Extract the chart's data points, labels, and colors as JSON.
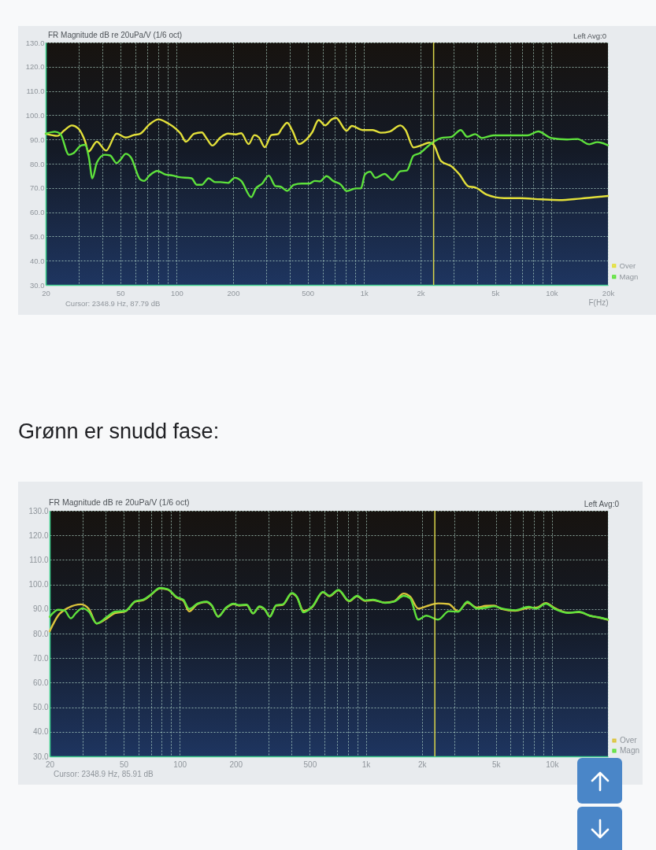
{
  "chart_data": [
    {
      "type": "line",
      "subtitle": "FR Magnitude dB re 20uPa/V (1/6 oct)",
      "xlabel": "F(Hz)",
      "annotations": [
        "Left Avg:0",
        "Cursor: 2348.9 Hz, 87.79 dB"
      ],
      "log": "x",
      "xlim": [
        20,
        20000
      ],
      "xticks": [
        20,
        {
          "value": 30,
          "label": null
        },
        {
          "value": 40,
          "label": null
        },
        50,
        {
          "value": 60,
          "label": null
        },
        {
          "value": 70,
          "label": null
        },
        {
          "value": 80,
          "label": null
        },
        {
          "value": 90,
          "label": null
        },
        100,
        200,
        {
          "value": 300,
          "label": null
        },
        {
          "value": 400,
          "label": null
        },
        500,
        {
          "value": 600,
          "label": null
        },
        {
          "value": 700,
          "label": null
        },
        {
          "value": 800,
          "label": null
        },
        {
          "value": 900,
          "label": null
        },
        {
          "value": 1000,
          "label": "1k"
        },
        {
          "value": 2000,
          "label": "2k"
        },
        {
          "value": 3000,
          "label": null
        },
        {
          "value": 4000,
          "label": null
        },
        {
          "value": 5000,
          "label": "5k"
        },
        {
          "value": 6000,
          "label": null
        },
        {
          "value": 7000,
          "label": null
        },
        {
          "value": 8000,
          "label": null
        },
        {
          "value": 9000,
          "label": null
        },
        {
          "value": 10000,
          "label": "10k"
        },
        {
          "value": 20000,
          "label": "20k"
        }
      ],
      "ylim": [
        30,
        130
      ],
      "yticks": [
        {
          "value": 30,
          "label": "30.0"
        },
        {
          "value": 40,
          "label": "40.0"
        },
        {
          "value": 50,
          "label": "50.0"
        },
        {
          "value": 60,
          "label": "60.0"
        },
        {
          "value": 70,
          "label": "70.0"
        },
        {
          "value": 80,
          "label": "80.0"
        },
        {
          "value": 90,
          "label": "90.0"
        },
        {
          "value": 100,
          "label": "100.0"
        },
        {
          "value": 110,
          "label": "110.0"
        },
        {
          "value": 120,
          "label": "120.0"
        },
        {
          "value": 130,
          "label": "130.0"
        }
      ],
      "grid": true,
      "legend": "bottom right",
      "line_style": "solid",
      "ref_lines": [
        {
          "axis": "x",
          "value": 2348.9,
          "color": "#d9d54a"
        }
      ],
      "series": [
        {
          "name": "Over",
          "color": "#e3e03a",
          "x": [
            20,
            23.1,
            25.1,
            27.6,
            29.9,
            32.5,
            33.8,
            37.5,
            42,
            47.8,
            53.5,
            58.9,
            63.9,
            71.5,
            80.1,
            89.6,
            98.7,
            105,
            112,
            124,
            136,
            145,
            155,
            171,
            188,
            207,
            221,
            242,
            260,
            275,
            295,
            320,
            347,
            364,
            389,
            415,
            449,
            495,
            528,
            572,
            620,
            672,
            708,
            806,
            860,
            978,
            1112,
            1226,
            1372,
            1560,
            1664,
            1834,
            2019,
            2225,
            2349,
            2573,
            2926,
            3224,
            3610,
            3912,
            4523,
            5577,
            6767,
            8762,
            10980,
            14210,
            20000
          ],
          "values": [
            92.4,
            91.5,
            93.7,
            95.8,
            94.5,
            89.1,
            85.0,
            89.1,
            85.4,
            92.4,
            90.8,
            91.8,
            92.4,
            96.2,
            98.3,
            96.7,
            94.5,
            92.4,
            89.1,
            92.4,
            92.9,
            90.2,
            87.5,
            90.8,
            92.4,
            92.1,
            92.6,
            88.1,
            91.8,
            90.8,
            86.8,
            91.8,
            92.2,
            94.5,
            96.9,
            93.5,
            88.1,
            90.2,
            92.9,
            98.0,
            95.8,
            98.3,
            98.9,
            93.6,
            95.6,
            93.9,
            93.9,
            92.8,
            93.3,
            95.8,
            93.9,
            86.7,
            87.6,
            88.7,
            87.8,
            81.1,
            78.9,
            75.6,
            70.6,
            70.2,
            67.2,
            65.8,
            65.8,
            65.3,
            65.0,
            65.6,
            66.7
          ]
        },
        {
          "name": "Magn",
          "color": "#5ee23c",
          "x": [
            20,
            22.4,
            23.9,
            26.6,
            28.1,
            30.9,
            32.5,
            34,
            35.5,
            37.5,
            41.3,
            44.1,
            47.8,
            50.1,
            53.5,
            57,
            63.9,
            67,
            71.5,
            78.8,
            86.8,
            95.6,
            102,
            120,
            128,
            136,
            148,
            160,
            171,
            188,
            204,
            221,
            250,
            264,
            286,
            310,
            336,
            359,
            389,
            421,
            464,
            511,
            545,
            582,
            630,
            683,
            753,
            806,
            902,
            962,
            1010,
            1077,
            1148,
            1286,
            1417,
            1560,
            1691,
            1834,
            1987,
            2154,
            2336,
            2573,
            2926,
            3276,
            3551,
            3912,
            4243,
            4902,
            6346,
            7456,
            8484,
            9966,
            12100,
            13760,
            15910,
            17520,
            20000
          ],
          "values": [
            92.4,
            93.2,
            92.4,
            83.7,
            84.3,
            87.5,
            87.8,
            82.6,
            74.0,
            80.5,
            83.7,
            83.4,
            80.3,
            81.6,
            84.1,
            82.6,
            73.5,
            72.9,
            75.1,
            77.0,
            75.6,
            75.1,
            74.5,
            74.0,
            71.3,
            71.3,
            74.0,
            72.4,
            72.4,
            72.1,
            74.2,
            72.9,
            66.2,
            69.7,
            71.8,
            75.1,
            70.8,
            70.5,
            68.8,
            71.3,
            71.8,
            71.8,
            72.9,
            72.7,
            74.9,
            72.9,
            71.3,
            68.7,
            69.8,
            69.8,
            75.6,
            76.7,
            74.2,
            75.8,
            73.3,
            76.9,
            77.2,
            83.3,
            84.4,
            86.7,
            88.9,
            90.6,
            91.1,
            93.9,
            91.1,
            92.2,
            90.6,
            91.7,
            91.7,
            91.7,
            93.3,
            90.6,
            90.0,
            90.2,
            88.0,
            88.9,
            87.6
          ]
        }
      ]
    },
    {
      "type": "line",
      "title": "Grønn er snudd fase:",
      "subtitle": "FR Magnitude dB re 20uPa/V (1/6 oct)",
      "annotations": [
        "Left Avg:0",
        "Cursor: 2348.9 Hz, 85.91 dB"
      ],
      "log": "x",
      "xlim": [
        20,
        20000
      ],
      "xticks": [
        20,
        {
          "value": 30,
          "label": null
        },
        {
          "value": 40,
          "label": null
        },
        50,
        {
          "value": 60,
          "label": null
        },
        {
          "value": 70,
          "label": null
        },
        {
          "value": 80,
          "label": null
        },
        {
          "value": 90,
          "label": null
        },
        100,
        200,
        {
          "value": 300,
          "label": null
        },
        {
          "value": 400,
          "label": null
        },
        500,
        {
          "value": 600,
          "label": null
        },
        {
          "value": 700,
          "label": null
        },
        {
          "value": 800,
          "label": null
        },
        {
          "value": 900,
          "label": null
        },
        {
          "value": 1000,
          "label": "1k"
        },
        {
          "value": 2000,
          "label": "2k"
        },
        {
          "value": 3000,
          "label": null
        },
        {
          "value": 4000,
          "label": null
        },
        {
          "value": 5000,
          "label": "5k"
        },
        {
          "value": 6000,
          "label": null
        },
        {
          "value": 7000,
          "label": null
        },
        {
          "value": 8000,
          "label": null
        },
        {
          "value": 9000,
          "label": null
        },
        {
          "value": 10000,
          "label": "10k"
        },
        {
          "value": 20000,
          "label": null
        }
      ],
      "ylim": [
        30,
        130
      ],
      "yticks": [
        {
          "value": 30,
          "label": "30.0"
        },
        {
          "value": 40,
          "label": "40.0"
        },
        {
          "value": 50,
          "label": "50.0"
        },
        {
          "value": 60,
          "label": "60.0"
        },
        {
          "value": 70,
          "label": "70.0"
        },
        {
          "value": 80,
          "label": "80.0"
        },
        {
          "value": 90,
          "label": "90.0"
        },
        {
          "value": 100,
          "label": "100.0"
        },
        {
          "value": 110,
          "label": "110.0"
        },
        {
          "value": 120,
          "label": "120.0"
        },
        {
          "value": 130,
          "label": "130.0"
        }
      ],
      "grid": true,
      "legend": "bottom right",
      "line_style": "solid",
      "ref_lines": [
        {
          "axis": "x",
          "value": 2348.9,
          "color": "#d9d54a"
        }
      ],
      "series": [
        {
          "name": "Over",
          "color": "#dcc43c",
          "x": [
            20,
            22.2,
            25.2,
            29.5,
            32.5,
            35.8,
            40.7,
            44.8,
            50.9,
            57.8,
            63.7,
            70,
            78.4,
            86.2,
            96.5,
            104.5,
            112.5,
            124.6,
            139.3,
            148.5,
            160.9,
            177,
            195,
            208,
            229,
            248,
            268,
            286,
            305,
            330,
            358,
            400,
            427,
            462,
            517,
            588,
            637,
            713,
            813,
            897,
            990,
            1093,
            1267,
            1422,
            1595,
            1732,
            1912,
            2110,
            2447,
            2791,
            3131,
            3513,
            3941,
            4422,
            4882,
            5388,
            6353,
            7485,
            8264,
            9272,
            10400,
            12270,
            13990,
            15950,
            18200,
            20000
          ],
          "values": [
            80.9,
            87.3,
            90.5,
            91.9,
            90.0,
            84.1,
            86.2,
            88.3,
            89.0,
            93.0,
            93.6,
            95.7,
            98.4,
            97.9,
            94.6,
            93.4,
            89.0,
            92.0,
            92.8,
            91.4,
            87.0,
            90.3,
            92.0,
            91.4,
            91.6,
            88.2,
            90.9,
            89.8,
            87.0,
            91.4,
            91.7,
            96.3,
            94.7,
            89.2,
            90.9,
            96.8,
            95.2,
            97.6,
            93.1,
            95.2,
            93.3,
            93.6,
            92.6,
            93.2,
            96.3,
            95.0,
            90.2,
            91.1,
            92.3,
            92.0,
            89.1,
            92.6,
            90.6,
            91.3,
            91.4,
            90.0,
            89.3,
            90.5,
            90.6,
            92.4,
            90.3,
            88.5,
            88.7,
            87.3,
            86.4,
            85.6
          ]
        },
        {
          "name": "Magn",
          "color": "#5ee23c",
          "x": [
            20,
            22.2,
            24,
            26,
            27.7,
            30,
            32.5,
            35.8,
            40.7,
            44.8,
            50.9,
            57.8,
            63.7,
            70,
            78.4,
            86.2,
            96.5,
            104.5,
            112.5,
            124.6,
            139.3,
            148.5,
            160.9,
            177,
            195,
            208,
            229,
            248,
            268,
            286,
            305,
            330,
            358,
            400,
            427,
            462,
            517,
            588,
            637,
            713,
            813,
            897,
            990,
            1093,
            1267,
            1422,
            1595,
            1732,
            1912,
            2110,
            2447,
            2791,
            3131,
            3513,
            3941,
            4422,
            4882,
            5388,
            6353,
            7485,
            8264,
            9272,
            10400,
            12270,
            13990,
            15950,
            18200,
            20000
          ],
          "values": [
            86.8,
            89.7,
            89.5,
            86.2,
            88.4,
            90.3,
            88.9,
            84.1,
            86.8,
            88.9,
            89.2,
            93.2,
            93.8,
            95.9,
            98.6,
            98.1,
            94.8,
            93.8,
            90.0,
            92.2,
            93.0,
            91.6,
            86.8,
            90.5,
            92.2,
            91.6,
            91.8,
            88.2,
            91.1,
            90.0,
            86.8,
            91.6,
            91.9,
            96.5,
            94.9,
            88.6,
            91.1,
            97.0,
            95.4,
            97.8,
            93.3,
            95.4,
            93.5,
            93.8,
            92.5,
            93.0,
            95.4,
            94.3,
            85.7,
            87.3,
            85.7,
            89.1,
            88.9,
            93.0,
            90.2,
            90.5,
            91.1,
            90.2,
            89.5,
            90.9,
            90.2,
            92.2,
            90.0,
            88.4,
            88.9,
            87.3,
            86.5,
            85.7
          ]
        }
      ]
    }
  ]
}
